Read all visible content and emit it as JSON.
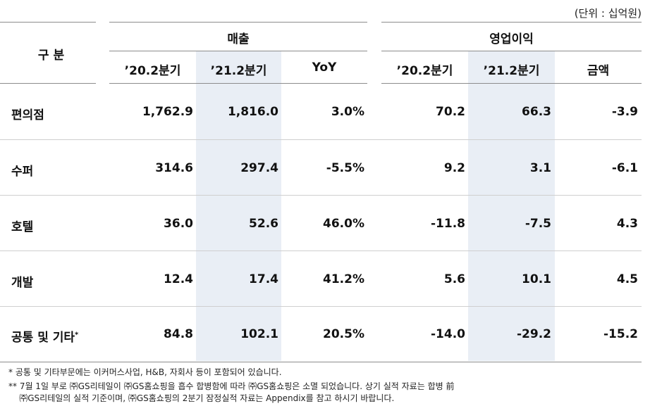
{
  "unit_note": "(단위 : 십억원)",
  "header": {
    "category": "구 분",
    "group_sales": "매출",
    "group_op": "영업이익",
    "sales_cols": [
      "’20.2분기",
      "’21.2분기",
      "YoY"
    ],
    "op_cols": [
      "’20.2분기",
      "’21.2분기",
      "금액"
    ]
  },
  "rows": [
    {
      "label": "편의점",
      "mark": "",
      "cells": [
        "1,762.9",
        "1,816.0",
        "3.0%",
        "70.2",
        "66.3",
        "-3.9"
      ]
    },
    {
      "label": "수퍼",
      "mark": "",
      "cells": [
        "314.6",
        "297.4",
        "-5.5%",
        "9.2",
        "3.1",
        "-6.1"
      ]
    },
    {
      "label": "호텔",
      "mark": "",
      "cells": [
        "36.0",
        "52.6",
        "46.0%",
        "-11.8",
        "-7.5",
        "4.3"
      ]
    },
    {
      "label": "개발",
      "mark": "",
      "cells": [
        "12.4",
        "17.4",
        "41.2%",
        "5.6",
        "10.1",
        "4.5"
      ]
    },
    {
      "label": "공통 및 기타",
      "mark": "*",
      "cells": [
        "84.8",
        "102.1",
        "20.5%",
        "-14.0",
        "-29.2",
        "-15.2"
      ]
    }
  ],
  "footnotes": [
    "*  공통 및 기타부문에는 이커머스사업, H&B, 자회사 등이 포함되어 있습니다.",
    "** 7월 1일 부로 ㈜GS리테일이 ㈜GS홈쇼핑을 흡수 합병함에 따라 ㈜GS홈쇼핑은 소멸 되었습니다. 상기 실적 자료는 합병 前",
    "    ㈜GS리테일의 실적 기준이며, ㈜GS홈쇼핑의 2분기 잠정실적 자료는 Appendix를 참고 하시기 바랍니다."
  ]
}
